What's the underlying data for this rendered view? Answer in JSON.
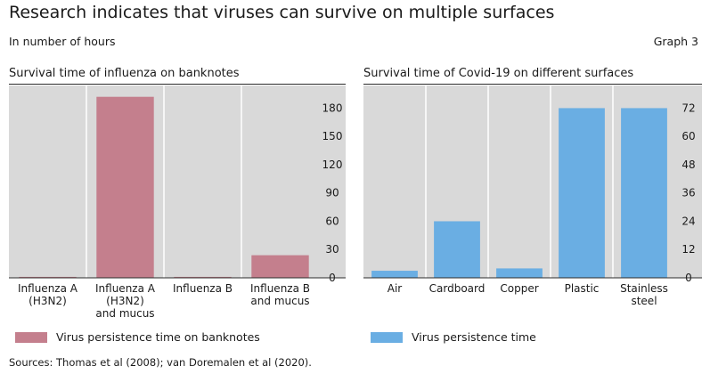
{
  "title": "Research indicates that viruses can survive on multiple surfaces",
  "units": "In number of hours",
  "graph_label": "Graph 3",
  "sources": "Sources: Thomas et al (2008); van Doremalen et al (2020).",
  "colors": {
    "panel1_bar": "#c47f8d",
    "panel2_bar": "#6aaee3",
    "plot_bg": "#d9d9d9",
    "grid": "#ffffff"
  },
  "chart_data": [
    {
      "type": "bar",
      "title": "Survival time of influenza on banknotes",
      "categories": [
        [
          "Influenza A",
          "(H3N2)"
        ],
        [
          "Influenza A",
          "(H3N2)",
          "and mucus"
        ],
        [
          "Influenza B"
        ],
        [
          "Influenza B",
          "and mucus"
        ]
      ],
      "series": [
        {
          "name": "Virus persistence time on banknotes",
          "values": [
            1,
            192,
            1,
            24
          ]
        }
      ],
      "ylim": [
        0,
        204
      ],
      "yticks": [
        0,
        30,
        60,
        90,
        120,
        150,
        180
      ],
      "grid": true,
      "legend": "bottom-left"
    },
    {
      "type": "bar",
      "title": "Survival time of Covid-19 on different surfaces",
      "categories": [
        [
          "Air"
        ],
        [
          "Cardboard"
        ],
        [
          "Copper"
        ],
        [
          "Plastic"
        ],
        [
          "Stainless",
          "steel"
        ]
      ],
      "series": [
        {
          "name": "Virus persistence time",
          "values": [
            3,
            24,
            4,
            72,
            72
          ]
        }
      ],
      "ylim": [
        0,
        81.6
      ],
      "yticks": [
        0,
        12,
        24,
        36,
        48,
        60,
        72
      ],
      "grid": true,
      "legend": "bottom-left"
    }
  ]
}
